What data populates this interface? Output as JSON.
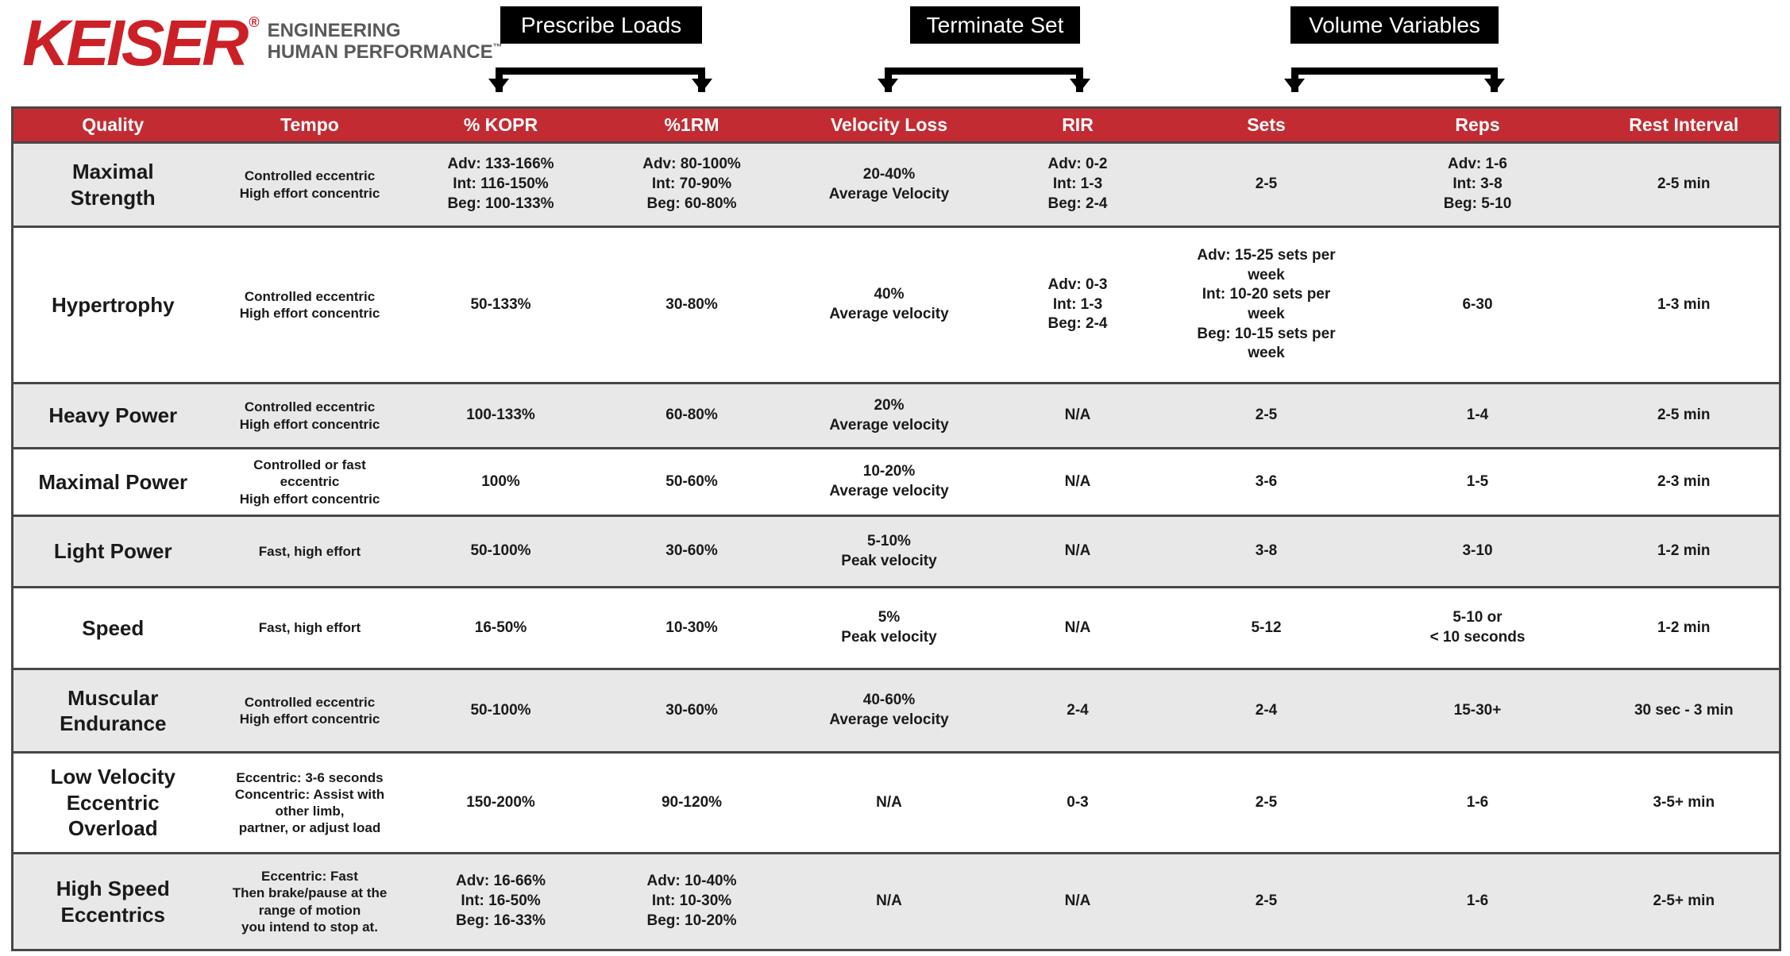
{
  "brand": {
    "logo": "KEISER",
    "registered_mark": "®",
    "tagline_line1": "ENGINEERING",
    "tagline_line2": "HUMAN PERFORMANCE",
    "trademark": "™"
  },
  "callouts": [
    {
      "label": "Prescribe Loads"
    },
    {
      "label": "Terminate Set"
    },
    {
      "label": "Volume Variables"
    }
  ],
  "colors": {
    "keiser_red": "#cc2027",
    "header_red": "#c32b33",
    "tagline_gray": "#58595b",
    "row_gray": "#e8e8e9",
    "row_white": "#ffffff",
    "border_dark": "#47474a",
    "callout_bg": "#000000",
    "callout_text": "#ffffff"
  },
  "table": {
    "headers": [
      "Quality",
      "Tempo",
      "% KOPR",
      "%1RM",
      "Velocity Loss",
      "RIR",
      "Sets",
      "Reps",
      "Rest Interval"
    ],
    "rows": [
      {
        "quality": "Maximal\nStrength",
        "tempo": "Controlled eccentric\nHigh effort concentric",
        "kopr": "Adv: 133-166%\nInt: 116-150%\nBeg: 100-133%",
        "one_rm": "Adv: 80-100%\nInt: 70-90%\nBeg: 60-80%",
        "velocity_loss": "20-40%\nAverage Velocity",
        "rir": "Adv: 0-2\nInt: 1-3\nBeg: 2-4",
        "sets": "2-5",
        "reps": "Adv: 1-6\nInt: 3-8\nBeg: 5-10",
        "rest_interval": "2-5 min"
      },
      {
        "quality": "Hypertrophy",
        "tempo": "Controlled eccentric\nHigh effort concentric",
        "kopr": "50-133%",
        "one_rm": "30-80%",
        "velocity_loss": "40%\nAverage velocity",
        "rir": "Adv: 0-3\nInt: 1-3\nBeg: 2-4",
        "sets": "Adv: 15-25 sets per\nweek\nInt: 10-20 sets per\nweek\nBeg: 10-15 sets per\nweek",
        "reps": "6-30",
        "rest_interval": "1-3 min"
      },
      {
        "quality": "Heavy Power",
        "tempo": "Controlled eccentric\nHigh effort concentric",
        "kopr": "100-133%",
        "one_rm": "60-80%",
        "velocity_loss": "20%\nAverage velocity",
        "rir": "N/A",
        "sets": "2-5",
        "reps": "1-4",
        "rest_interval": "2-5 min"
      },
      {
        "quality": "Maximal Power",
        "tempo": "Controlled or fast\neccentric\nHigh effort concentric",
        "kopr": "100%",
        "one_rm": "50-60%",
        "velocity_loss": "10-20%\nAverage velocity",
        "rir": "N/A",
        "sets": "3-6",
        "reps": "1-5",
        "rest_interval": "2-3 min"
      },
      {
        "quality": "Light Power",
        "tempo": "Fast, high effort",
        "kopr": "50-100%",
        "one_rm": "30-60%",
        "velocity_loss": "5-10%\nPeak velocity",
        "rir": "N/A",
        "sets": "3-8",
        "reps": "3-10",
        "rest_interval": "1-2 min"
      },
      {
        "quality": "Speed",
        "tempo": "Fast, high effort",
        "kopr": "16-50%",
        "one_rm": "10-30%",
        "velocity_loss": "5%\nPeak velocity",
        "rir": "N/A",
        "sets": "5-12",
        "reps": "5-10 or\n< 10 seconds",
        "rest_interval": "1-2 min"
      },
      {
        "quality": "Muscular\nEndurance",
        "tempo": "Controlled eccentric\nHigh effort concentric",
        "kopr": "50-100%",
        "one_rm": "30-60%",
        "velocity_loss": "40-60%\nAverage velocity",
        "rir": "2-4",
        "sets": "2-4",
        "reps": "15-30+",
        "rest_interval": "30 sec - 3 min"
      },
      {
        "quality": "Low Velocity\nEccentric\nOverload",
        "tempo": "Eccentric: 3-6 seconds\nConcentric: Assist with\nother limb,\npartner, or adjust load",
        "kopr": "150-200%",
        "one_rm": "90-120%",
        "velocity_loss": "N/A",
        "rir": "0-3",
        "sets": "2-5",
        "reps": "1-6",
        "rest_interval": "3-5+ min"
      },
      {
        "quality": "High Speed\nEccentrics",
        "tempo": "Eccentric: Fast\nThen brake/pause at the\nrange of motion\nyou intend to stop at.",
        "kopr": "Adv: 16-66%\nInt: 16-50%\nBeg: 16-33%",
        "one_rm": "Adv: 10-40%\nInt: 10-30%\nBeg: 10-20%",
        "velocity_loss": "N/A",
        "rir": "N/A",
        "sets": "2-5",
        "reps": "1-6",
        "rest_interval": "2-5+ min"
      }
    ]
  }
}
